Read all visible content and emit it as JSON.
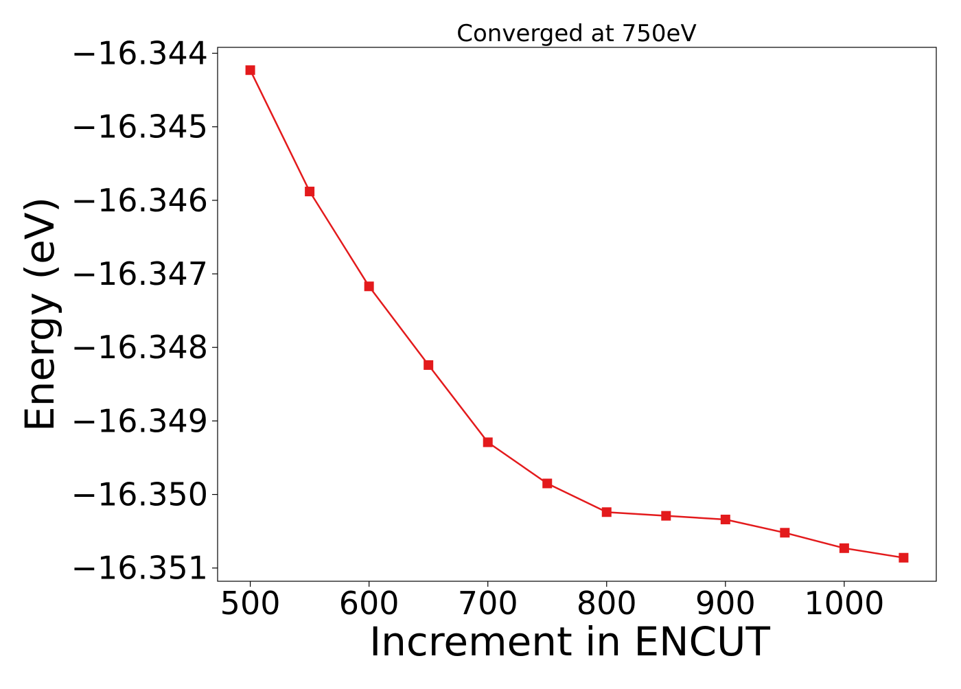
{
  "chart_data": {
    "type": "line",
    "title": "Converged at 750eV",
    "xlabel": "Increment in ENCUT",
    "ylabel": "Energy (eV)",
    "xlim": [
      472.5,
      1077.5
    ],
    "ylim": [
      -16.35118,
      -16.34392
    ],
    "xticks": [
      500,
      600,
      700,
      800,
      900,
      1000
    ],
    "yticks": [
      -16.344,
      -16.345,
      -16.346,
      -16.347,
      -16.348,
      -16.349,
      -16.35,
      -16.351
    ],
    "ytick_labels": [
      "−16.344",
      "−16.345",
      "−16.346",
      "−16.347",
      "−16.348",
      "−16.349",
      "−16.350",
      "−16.351"
    ],
    "grid": false,
    "series": [
      {
        "color": "#e31a1c",
        "marker": "square",
        "x": [
          500,
          550,
          600,
          650,
          700,
          750,
          800,
          850,
          900,
          950,
          1000,
          1050
        ],
        "y": [
          -16.34423,
          -16.34588,
          -16.34717,
          -16.34824,
          -16.34929,
          -16.34985,
          -16.35024,
          -16.35029,
          -16.35034,
          -16.35052,
          -16.35073,
          -16.35086
        ]
      }
    ]
  }
}
